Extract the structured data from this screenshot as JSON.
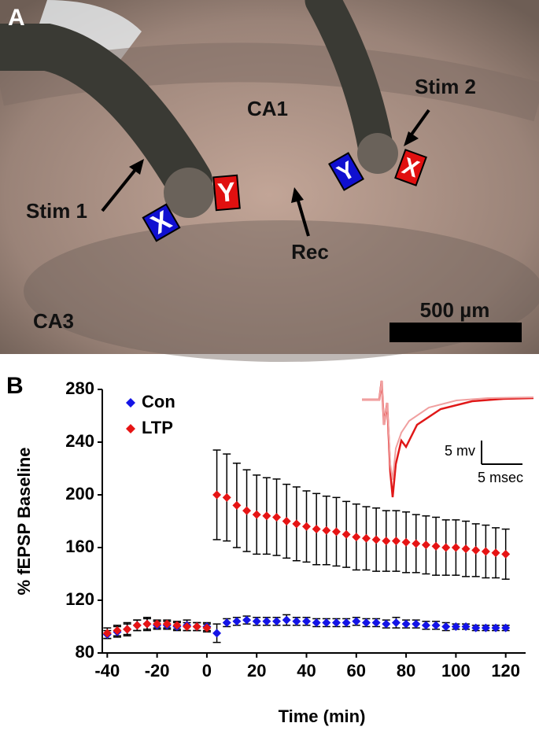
{
  "panel_a": {
    "label": "A",
    "regions": [
      "CA1",
      "CA3"
    ],
    "electrodes": [
      "Stim 1",
      "Stim 2",
      "Rec"
    ],
    "scale_bar": "500 µm",
    "markers": [
      "X",
      "Y",
      "Y",
      "X"
    ]
  },
  "panel_b": {
    "label": "B"
  },
  "chart_data": {
    "type": "scatter",
    "xlabel": "Time (min)",
    "ylabel": "% fEPSP Baseline",
    "annotations": [
      "5 mv",
      "5 msec"
    ],
    "legend": "upper left",
    "marker": "diamond",
    "xlim": [
      -42,
      128
    ],
    "ylim": [
      80,
      280
    ],
    "xticks": [
      -40,
      -20,
      0,
      20,
      40,
      60,
      80,
      100,
      120
    ],
    "yticks": [
      80,
      120,
      160,
      200,
      240,
      280
    ],
    "x": [
      -40,
      -36,
      -32,
      -28,
      -24,
      -20,
      -16,
      -12,
      -8,
      -4,
      0,
      4,
      8,
      12,
      16,
      20,
      24,
      28,
      32,
      36,
      40,
      44,
      48,
      52,
      56,
      60,
      64,
      68,
      72,
      76,
      80,
      84,
      88,
      92,
      96,
      100,
      104,
      108,
      112,
      116,
      120
    ],
    "series": [
      {
        "name": "Con",
        "color": "#1414e6",
        "values": [
          94,
          96,
          98,
          101,
          102,
          101,
          101,
          100,
          101,
          100,
          100,
          95,
          103,
          104,
          105,
          104,
          104,
          104,
          105,
          104,
          104,
          103,
          103,
          103,
          103,
          104,
          103,
          103,
          102,
          103,
          102,
          102,
          101,
          101,
          100,
          100,
          100,
          99,
          99,
          99,
          99
        ],
        "errors": [
          3,
          4,
          5,
          4,
          5,
          3,
          3,
          3,
          4,
          3,
          3,
          7,
          3,
          3,
          3,
          3,
          3,
          3,
          4,
          3,
          3,
          3,
          3,
          3,
          3,
          3,
          3,
          3,
          3,
          4,
          3,
          3,
          3,
          3,
          3,
          2,
          2,
          2,
          2,
          2,
          2
        ]
      },
      {
        "name": "LTP",
        "color": "#e61414",
        "values": [
          95,
          97,
          98,
          101,
          102,
          102,
          102,
          101,
          100,
          100,
          99,
          200,
          198,
          192,
          188,
          185,
          184,
          183,
          180,
          178,
          176,
          174,
          173,
          172,
          170,
          168,
          167,
          166,
          165,
          165,
          164,
          163,
          162,
          161,
          160,
          160,
          159,
          158,
          157,
          156,
          155
        ],
        "errors": [
          4,
          4,
          4,
          4,
          4,
          3,
          3,
          3,
          3,
          3,
          3,
          34,
          33,
          32,
          31,
          30,
          29,
          29,
          28,
          28,
          27,
          27,
          26,
          26,
          25,
          25,
          24,
          24,
          23,
          23,
          23,
          22,
          22,
          22,
          21,
          21,
          21,
          20,
          20,
          19,
          19
        ]
      }
    ]
  }
}
